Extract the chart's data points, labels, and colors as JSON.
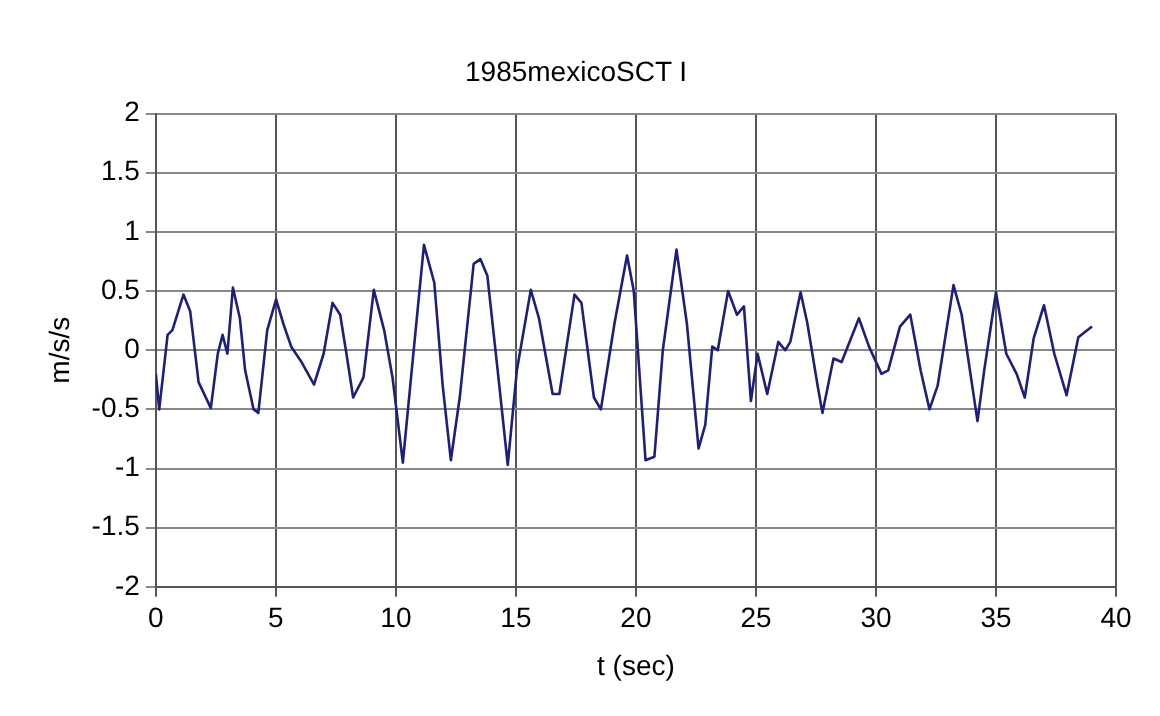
{
  "chart_data": {
    "type": "line",
    "title": "1985mexicoSCT I",
    "xlabel": "t (sec)",
    "ylabel": "m/s/s",
    "xlim": [
      0,
      40
    ],
    "xticks": [
      0,
      5,
      10,
      15,
      20,
      25,
      30,
      35,
      40
    ],
    "ylim": [
      -2,
      2
    ],
    "yticks": [
      -2,
      -1.5,
      -1,
      -0.5,
      0,
      0.5,
      1,
      1.5,
      2
    ],
    "grid": true,
    "marker": "none",
    "line_style": "solid",
    "series": [
      {
        "color": "#1f1f7a",
        "x": [
          0,
          0.14,
          0.49,
          0.69,
          1.15,
          1.43,
          1.78,
          2.29,
          2.58,
          2.78,
          2.98,
          3.21,
          3.5,
          3.72,
          4.07,
          4.27,
          4.64,
          5.01,
          5.3,
          5.64,
          6.07,
          6.59,
          6.99,
          7.36,
          7.68,
          7.94,
          8.22,
          8.65,
          9.08,
          9.51,
          9.86,
          10.29,
          10.66,
          11.17,
          11.6,
          11.95,
          12.29,
          12.66,
          13.24,
          13.52,
          13.81,
          14.24,
          14.66,
          15.04,
          15.62,
          15.96,
          16.53,
          16.81,
          17.44,
          17.73,
          18.25,
          18.54,
          19.11,
          19.63,
          19.91,
          20.4,
          20.77,
          21.12,
          21.69,
          22.12,
          22.61,
          22.89,
          23.18,
          23.41,
          23.84,
          24.21,
          24.5,
          24.79,
          25.07,
          25.47,
          25.93,
          26.22,
          26.43,
          26.86,
          27.14,
          27.57,
          27.77,
          28.23,
          28.57,
          29.29,
          29.71,
          30.23,
          30.51,
          31,
          31.43,
          31.86,
          32.23,
          32.57,
          33.23,
          33.57,
          34.23,
          34.51,
          35,
          35.43,
          35.86,
          36.2,
          36.57,
          37,
          37.43,
          37.94,
          38.43,
          39
        ],
        "values": [
          -0.2,
          -0.5,
          0.13,
          0.17,
          0.47,
          0.33,
          -0.27,
          -0.49,
          -0.03,
          0.13,
          -0.03,
          0.53,
          0.27,
          -0.17,
          -0.5,
          -0.53,
          0.17,
          0.43,
          0.23,
          0.03,
          -0.1,
          -0.29,
          -0.03,
          0.4,
          0.3,
          -0.03,
          -0.4,
          -0.23,
          0.51,
          0.17,
          -0.23,
          -0.95,
          -0.17,
          0.89,
          0.57,
          -0.3,
          -0.93,
          -0.4,
          0.73,
          0.77,
          0.63,
          -0.17,
          -0.97,
          -0.17,
          0.51,
          0.27,
          -0.37,
          -0.37,
          0.47,
          0.4,
          -0.4,
          -0.5,
          0.23,
          0.8,
          0.5,
          -0.93,
          -0.9,
          0,
          0.85,
          0.23,
          -0.83,
          -0.63,
          0.03,
          0,
          0.5,
          0.3,
          0.37,
          -0.43,
          -0.03,
          -0.37,
          0.07,
          0,
          0.07,
          0.49,
          0.23,
          -0.3,
          -0.53,
          -0.07,
          -0.1,
          0.27,
          0.03,
          -0.2,
          -0.17,
          0.2,
          0.3,
          -0.17,
          -0.5,
          -0.3,
          0.55,
          0.3,
          -0.6,
          -0.17,
          0.49,
          -0.03,
          -0.2,
          -0.4,
          0.1,
          0.38,
          -0.03,
          -0.38,
          0.11,
          0.2
        ]
      }
    ]
  }
}
